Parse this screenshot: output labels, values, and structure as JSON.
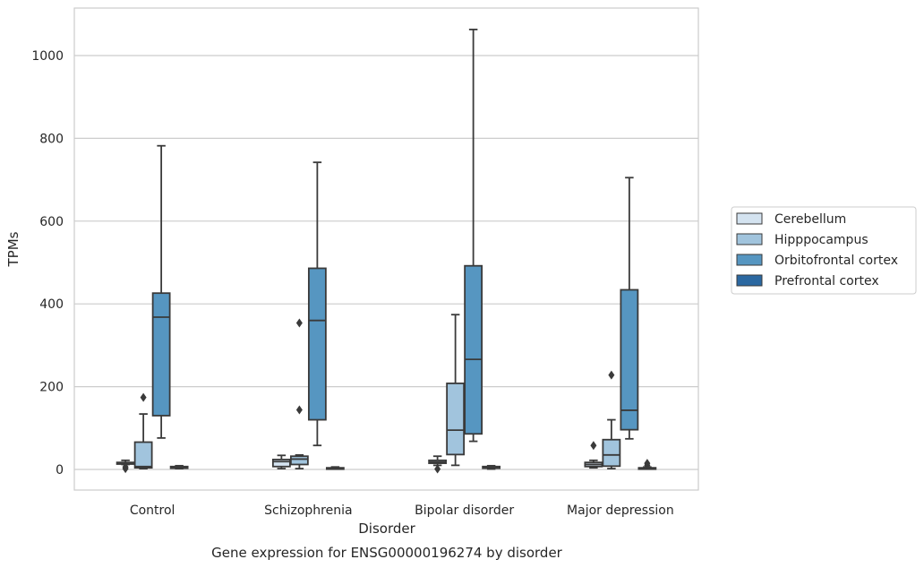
{
  "chart_data": {
    "type": "box",
    "title": "Gene expression for ENSG00000196274 by disorder",
    "xlabel": "Disorder",
    "ylabel": "TPMs",
    "ylim": [
      -50,
      1115
    ],
    "yticks": [
      0,
      200,
      400,
      600,
      800,
      1000
    ],
    "grid": true,
    "legend_position": "right",
    "categories": [
      "Control",
      "Schizophrenia",
      "Bipolar disorder",
      "Major depression"
    ],
    "series": [
      {
        "name": "Cerebellum",
        "color": "#d4e3f0",
        "boxes": [
          {
            "whislo": 12,
            "q1": 13,
            "med": 15,
            "q3": 17,
            "whishi": 22,
            "fliers": [
              2,
              6
            ]
          },
          {
            "whislo": 2,
            "q1": 7,
            "med": 19,
            "q3": 24,
            "whishi": 34,
            "fliers": []
          },
          {
            "whislo": 10,
            "q1": 15,
            "med": 18,
            "q3": 22,
            "whishi": 32,
            "fliers": [
              1
            ]
          },
          {
            "whislo": 4,
            "q1": 7,
            "med": 12,
            "q3": 17,
            "whishi": 22,
            "fliers": [
              58
            ]
          }
        ]
      },
      {
        "name": "Hipppocampus",
        "color": "#a1c4dd",
        "boxes": [
          {
            "whislo": 2,
            "q1": 4,
            "med": 7,
            "q3": 66,
            "whishi": 134,
            "fliers": [
              174
            ]
          },
          {
            "whislo": 2,
            "q1": 12,
            "med": 25,
            "q3": 32,
            "whishi": 35,
            "fliers": [
              144,
              354
            ]
          },
          {
            "whislo": 10,
            "q1": 36,
            "med": 95,
            "q3": 208,
            "whishi": 374,
            "fliers": []
          },
          {
            "whislo": 2,
            "q1": 8,
            "med": 35,
            "q3": 72,
            "whishi": 120,
            "fliers": [
              228
            ]
          }
        ]
      },
      {
        "name": "Orbitofrontal cortex",
        "color": "#5696c1",
        "boxes": [
          {
            "whislo": 76,
            "q1": 130,
            "med": 368,
            "q3": 426,
            "whishi": 782,
            "fliers": []
          },
          {
            "whislo": 58,
            "q1": 120,
            "med": 360,
            "q3": 486,
            "whishi": 742,
            "fliers": []
          },
          {
            "whislo": 68,
            "q1": 86,
            "med": 266,
            "q3": 492,
            "whishi": 1063,
            "fliers": []
          },
          {
            "whislo": 74,
            "q1": 96,
            "med": 143,
            "q3": 434,
            "whishi": 705,
            "fliers": []
          }
        ]
      },
      {
        "name": "Prefrontal cortex",
        "color": "#2b68a1",
        "boxes": [
          {
            "whislo": 2,
            "q1": 3,
            "med": 5,
            "q3": 7,
            "whishi": 9,
            "fliers": []
          },
          {
            "whislo": 1,
            "q1": 2,
            "med": 3,
            "q3": 4,
            "whishi": 6,
            "fliers": []
          },
          {
            "whislo": 1,
            "q1": 3,
            "med": 5,
            "q3": 7,
            "whishi": 9,
            "fliers": []
          },
          {
            "whislo": 1,
            "q1": 2,
            "med": 3,
            "q3": 4,
            "whishi": 6,
            "fliers": [
              10,
              15
            ]
          }
        ]
      }
    ]
  }
}
